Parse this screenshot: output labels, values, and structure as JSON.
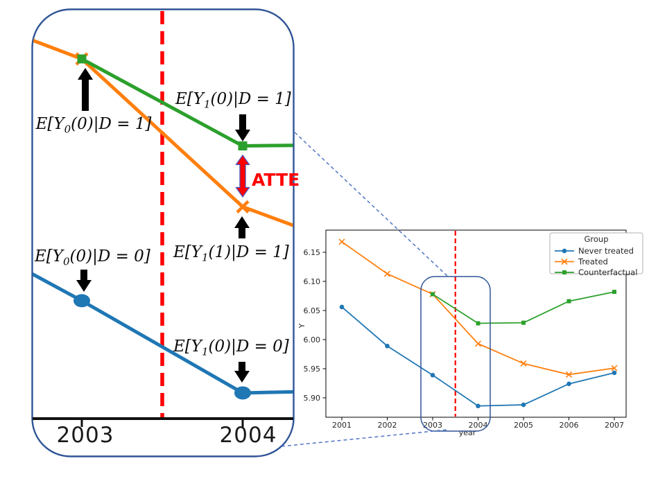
{
  "colors": {
    "never_treated": "#1f77b4",
    "treated": "#ff7f0e",
    "counterfactual": "#2ca02c",
    "treatment_line": "#ff0000",
    "highlight": "#2f5496",
    "connector": "#4f74c4",
    "annotation_arrow": "#000000",
    "atte": "#ff0000",
    "atte_arrow_outline": "#4a52b8",
    "axis": "#000000",
    "chart_text": "#262626"
  },
  "zoom_panel": {
    "x_ticks": [
      "2003",
      "2004"
    ],
    "annotations": {
      "y0_d1": {
        "pre": "E[Y",
        "sub": "0",
        "post": "(0)|D = 1]"
      },
      "y1_0_d1": {
        "pre": "E[Y",
        "sub": "1",
        "post": "(0)|D = 1]"
      },
      "y1_1_d1": {
        "pre": "E[Y",
        "sub": "1",
        "post": "(1)|D = 1]"
      },
      "y0_d0": {
        "pre": "E[Y",
        "sub": "0",
        "post": "(0)|D = 0]"
      },
      "y1_0_d0": {
        "pre": "E[Y",
        "sub": "1",
        "post": "(0)|D = 0]"
      },
      "atte_label": "ATTE"
    }
  },
  "chart_data": {
    "type": "line",
    "title": "",
    "xlabel": "year",
    "ylabel": "Y",
    "x": [
      2001,
      2002,
      2003,
      2004,
      2005,
      2006,
      2007
    ],
    "ylim": [
      5.858,
      6.19
    ],
    "yticks": [
      5.9,
      5.95,
      6.0,
      6.05,
      6.1,
      6.15
    ],
    "grid": false,
    "legend_title": "Group",
    "legend_position": "upper right",
    "treatment_time": 2003.5,
    "series": [
      {
        "name": "Never treated",
        "marker": "circle",
        "color": "#1f77b4",
        "x": [
          2001,
          2002,
          2003,
          2004,
          2005,
          2006,
          2007
        ],
        "values": [
          6.056,
          5.989,
          5.939,
          5.886,
          5.888,
          5.924,
          5.943
        ]
      },
      {
        "name": "Treated",
        "marker": "x",
        "color": "#ff7f0e",
        "x": [
          2001,
          2002,
          2003,
          2004,
          2005,
          2006,
          2007
        ],
        "values": [
          6.168,
          6.113,
          6.078,
          5.993,
          5.959,
          5.94,
          5.951
        ]
      },
      {
        "name": "Counterfactual",
        "marker": "square",
        "color": "#2ca02c",
        "x": [
          2003,
          2004,
          2005,
          2006,
          2007
        ],
        "values": [
          6.078,
          6.028,
          6.029,
          6.066,
          6.082
        ]
      }
    ]
  }
}
